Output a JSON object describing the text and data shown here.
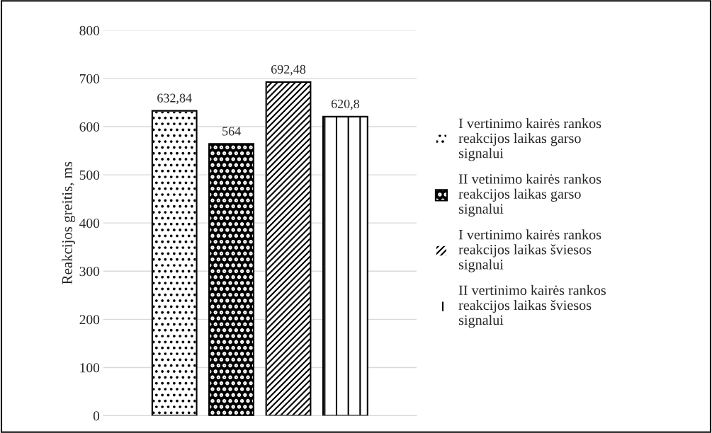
{
  "chart_data": {
    "type": "bar",
    "ylabel": "Reakcijos greitis, ms",
    "categories": [
      null
    ],
    "series": [
      {
        "name": "I vertinimo kairės rankos reakcijos laikas garso signalui",
        "color": "#ffffff",
        "values": [
          632.84
        ],
        "value_labels": [
          "632,84"
        ]
      },
      {
        "name": "II vetinimo kairės rankos reakcijos laikas garso signalui",
        "color": "#000000",
        "values": [
          564
        ],
        "value_labels": [
          "564"
        ]
      },
      {
        "name": "I vertinimo kairės rankos reakcijos laikas šviesos signalui",
        "color": "#ffffff",
        "values": [
          692.48
        ],
        "value_labels": [
          "692,48"
        ]
      },
      {
        "name": "II vertinimo kairės rankos reakcijos laikas šviesos signalui",
        "color": "#ffffff",
        "values": [
          620.8
        ],
        "value_labels": [
          "620,8"
        ]
      }
    ],
    "ylim": [
      0,
      800
    ],
    "yticks": [
      0,
      100,
      200,
      300,
      400,
      500,
      600,
      700,
      800
    ],
    "grid": "y",
    "legend": "right",
    "tick_labels": "y"
  }
}
